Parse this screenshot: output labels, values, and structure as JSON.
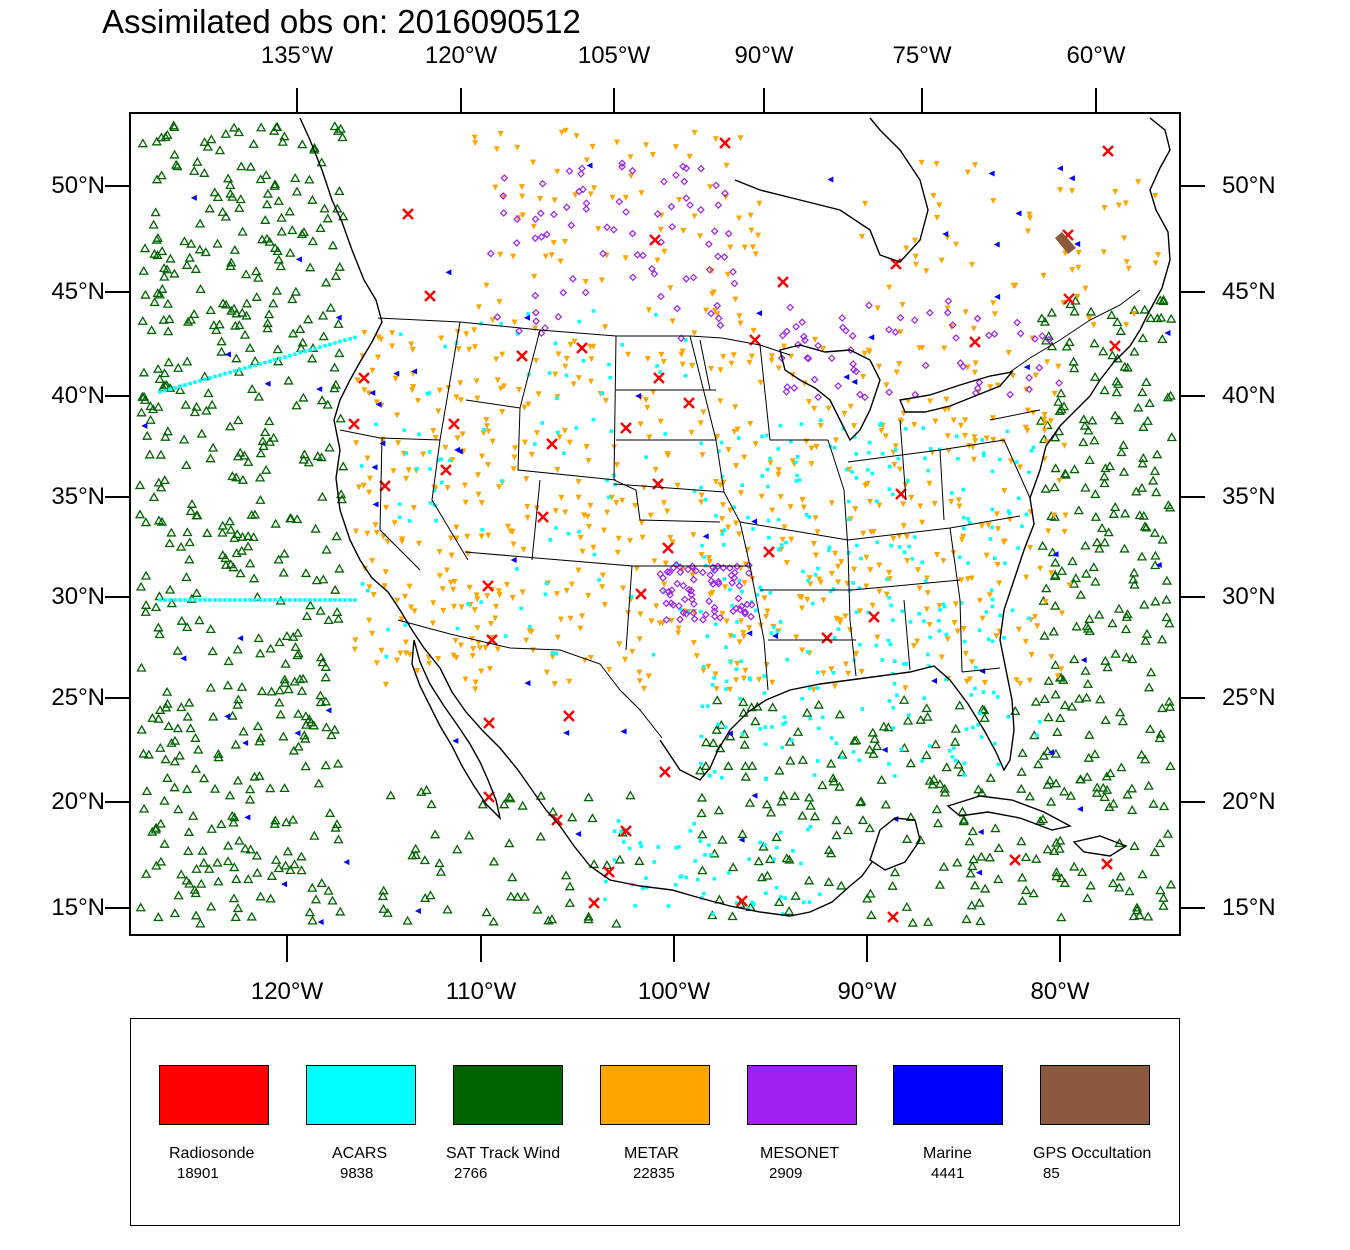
{
  "title": "Assimilated obs on: 2016090512",
  "axes": {
    "top_lon": [
      "135°W",
      "120°W",
      "105°W",
      "90°W",
      "75°W",
      "60°W"
    ],
    "bottom_lon": [
      "120°W",
      "110°W",
      "100°W",
      "90°W",
      "80°W"
    ],
    "left_lat": [
      "50°N",
      "45°N",
      "40°N",
      "35°N",
      "30°N",
      "25°N",
      "20°N",
      "15°N"
    ],
    "right_lat": [
      "50°N",
      "45°N",
      "40°N",
      "35°N",
      "30°N",
      "25°N",
      "20°N",
      "15°N"
    ]
  },
  "legend": [
    {
      "name": "Radiosonde",
      "count": "18901",
      "color": "#ff0000",
      "marker": "x"
    },
    {
      "name": "ACARS",
      "count": "9838",
      "color": "#00ffff",
      "marker": "square"
    },
    {
      "name": "SAT Track Wind",
      "count": "2766",
      "color": "#006400",
      "marker": "triangle-up"
    },
    {
      "name": "METAR",
      "count": "22835",
      "color": "#ffa500",
      "marker": "triangle-down"
    },
    {
      "name": "MESONET",
      "count": "2909",
      "color": "#a020f0",
      "marker": "diamond"
    },
    {
      "name": "Marine",
      "count": "4441",
      "color": "#0000ff",
      "marker": "triangle-left"
    },
    {
      "name": "GPS Occultation",
      "count": "85",
      "color": "#8b5a3c",
      "marker": "square"
    }
  ]
}
